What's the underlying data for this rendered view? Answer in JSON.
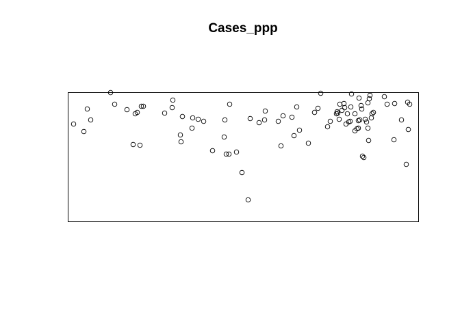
{
  "chart_data": {
    "type": "scatter",
    "title": "Cases_ppp",
    "xlabel": "",
    "ylabel": "",
    "grid": false,
    "legend": "none",
    "xlim": [
      0,
      512
    ],
    "ylim": [
      0,
      189
    ],
    "marker": "open-circle",
    "colors": {
      "points": "#000000",
      "window": "#000000",
      "background": "#ffffff"
    },
    "points": [
      [
        8,
        143
      ],
      [
        23,
        132
      ],
      [
        28,
        165
      ],
      [
        33,
        149
      ],
      [
        62,
        189
      ],
      [
        68,
        172
      ],
      [
        86,
        164
      ],
      [
        95,
        113
      ],
      [
        98,
        158
      ],
      [
        101,
        160
      ],
      [
        105,
        112
      ],
      [
        107,
        169
      ],
      [
        110,
        169
      ],
      [
        141,
        159
      ],
      [
        152,
        167
      ],
      [
        153,
        178
      ],
      [
        164,
        127
      ],
      [
        165,
        117
      ],
      [
        167,
        154
      ],
      [
        181,
        137
      ],
      [
        182,
        152
      ],
      [
        190,
        150
      ],
      [
        198,
        147
      ],
      [
        211,
        104
      ],
      [
        228,
        124
      ],
      [
        229,
        149
      ],
      [
        231,
        99
      ],
      [
        235,
        99
      ],
      [
        236,
        172
      ],
      [
        246,
        102
      ],
      [
        254,
        72
      ],
      [
        263,
        32
      ],
      [
        266,
        151
      ],
      [
        279,
        145
      ],
      [
        287,
        149
      ],
      [
        288,
        162
      ],
      [
        307,
        147
      ],
      [
        311,
        111
      ],
      [
        314,
        155
      ],
      [
        327,
        153
      ],
      [
        330,
        126
      ],
      [
        334,
        168
      ],
      [
        338,
        134
      ],
      [
        351,
        115
      ],
      [
        360,
        160
      ],
      [
        365,
        166
      ],
      [
        369,
        188
      ],
      [
        379,
        139
      ],
      [
        383,
        147
      ],
      [
        392,
        158
      ],
      [
        393,
        161
      ],
      [
        394,
        159
      ],
      [
        396,
        150
      ],
      [
        397,
        172
      ],
      [
        400,
        163
      ],
      [
        403,
        173
      ],
      [
        404,
        167
      ],
      [
        406,
        143
      ],
      [
        408,
        158
      ],
      [
        410,
        146
      ],
      [
        412,
        147
      ],
      [
        413,
        168
      ],
      [
        414,
        187
      ],
      [
        419,
        158
      ],
      [
        419,
        133
      ],
      [
        422,
        136
      ],
      [
        424,
        137
      ],
      [
        424,
        148
      ],
      [
        425,
        181
      ],
      [
        426,
        149
      ],
      [
        428,
        170
      ],
      [
        429,
        165
      ],
      [
        430,
        96
      ],
      [
        432,
        94
      ],
      [
        434,
        150
      ],
      [
        436,
        146
      ],
      [
        438,
        174
      ],
      [
        438,
        137
      ],
      [
        439,
        119
      ],
      [
        440,
        180
      ],
      [
        441,
        185
      ],
      [
        443,
        152
      ],
      [
        444,
        158
      ],
      [
        446,
        160
      ],
      [
        462,
        183
      ],
      [
        466,
        172
      ],
      [
        476,
        120
      ],
      [
        477,
        173
      ],
      [
        487,
        149
      ],
      [
        494,
        84
      ],
      [
        496,
        175
      ],
      [
        497,
        135
      ],
      [
        499,
        172
      ]
    ]
  }
}
